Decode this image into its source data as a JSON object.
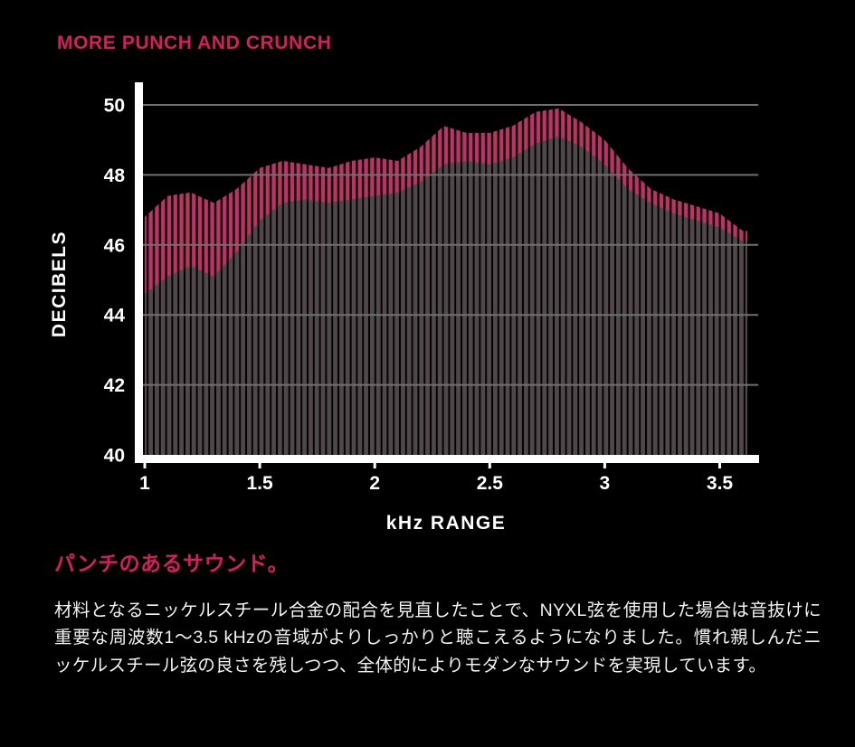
{
  "page": {
    "background": "#000000"
  },
  "accent_color": "#d81d5f",
  "title": "MORE PUNCH AND CRUNCH",
  "subheading": "パンチのあるサウンド。",
  "body_text": "材料となるニッケルスチール合金の配合を見直したことで、NYXL弦を使用した場合は音抜けに重要な周波数1〜3.5 kHzの音域がよりしっかりと聴こえるようになりました。慣れ親しんだニッケルスチール弦の良さを残しつつ、全体的によりモダンなサウンドを実現しています。",
  "chart_data": {
    "type": "area",
    "style": "vertical-striped comb bars, two stacked areas on black",
    "title": "MORE PUNCH AND CRUNCH",
    "xlabel": "kHz RANGE",
    "ylabel": "DECIBELS",
    "xlim": [
      1,
      3.62
    ],
    "ylim": [
      40,
      50
    ],
    "xticks": [
      1,
      1.5,
      2,
      2.5,
      3,
      3.5
    ],
    "yticks": [
      40,
      42,
      44,
      46,
      48,
      50
    ],
    "grid": true,
    "legend": "none",
    "axis_color": "#ffffff",
    "gridline_color": "#707070",
    "x": [
      1.0,
      1.1,
      1.2,
      1.3,
      1.4,
      1.5,
      1.6,
      1.7,
      1.8,
      1.9,
      2.0,
      2.1,
      2.2,
      2.3,
      2.4,
      2.5,
      2.6,
      2.7,
      2.8,
      2.9,
      3.0,
      3.1,
      3.2,
      3.3,
      3.4,
      3.5,
      3.6
    ],
    "series": [
      {
        "name": "pink-series",
        "color": "#bc3365",
        "values": [
          46.8,
          47.4,
          47.5,
          47.2,
          47.6,
          48.2,
          48.4,
          48.3,
          48.2,
          48.4,
          48.5,
          48.4,
          48.8,
          49.4,
          49.2,
          49.2,
          49.4,
          49.8,
          49.9,
          49.5,
          49.0,
          48.2,
          47.6,
          47.3,
          47.1,
          46.9,
          46.4
        ]
      },
      {
        "name": "gray-series",
        "color": "#4a4a4a",
        "values": [
          44.6,
          45.1,
          45.4,
          45.1,
          45.8,
          46.7,
          47.2,
          47.3,
          47.2,
          47.3,
          47.4,
          47.5,
          47.8,
          48.3,
          48.4,
          48.3,
          48.5,
          48.9,
          49.1,
          48.8,
          48.3,
          47.6,
          47.2,
          46.9,
          46.7,
          46.5,
          46.1
        ]
      }
    ]
  }
}
